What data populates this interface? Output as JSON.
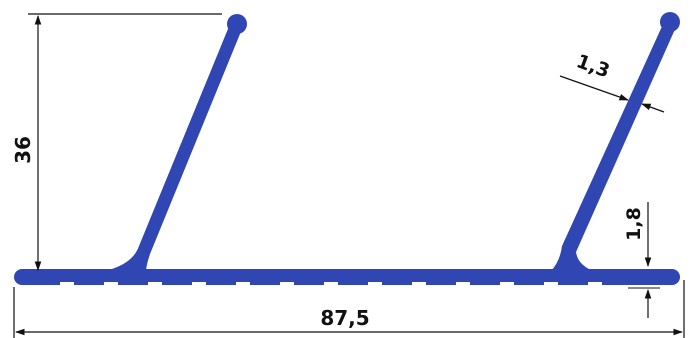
{
  "drawing": {
    "profile_color": "#2f46b3",
    "dimensions": {
      "height": "36",
      "wall_thickness": "1,3",
      "base_thickness": "1,8",
      "total_width": "87,5"
    }
  }
}
